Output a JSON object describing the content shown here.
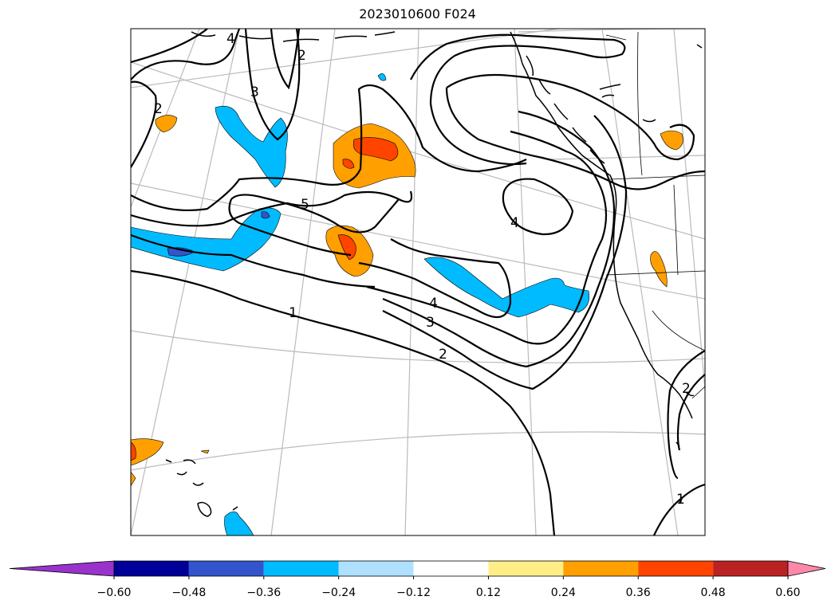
{
  "title": "2023010600 F024",
  "contour_labels": [
    "2",
    "4",
    "2",
    "3",
    "5",
    "4",
    "4",
    "3",
    "2",
    "1",
    "2",
    "1"
  ],
  "colorbar": {
    "ticks": [
      "−0.60",
      "−0.48",
      "−0.36",
      "−0.24",
      "−0.12",
      "0.12",
      "0.24",
      "0.36",
      "0.48",
      "0.60"
    ],
    "under_color": "#9933cc",
    "over_color": "#ff88aa",
    "colors": [
      "#000099",
      "#3355cc",
      "#00bbff",
      "#b0e0ff",
      "#ffffff",
      "#ffee88",
      "#ffa000",
      "#ff4400",
      "#bb2222"
    ]
  },
  "fill_colors": {
    "blue": "#00bbff",
    "dark_blue": "#3355cc",
    "orange": "#ffa000",
    "red_orange": "#ff4400"
  }
}
